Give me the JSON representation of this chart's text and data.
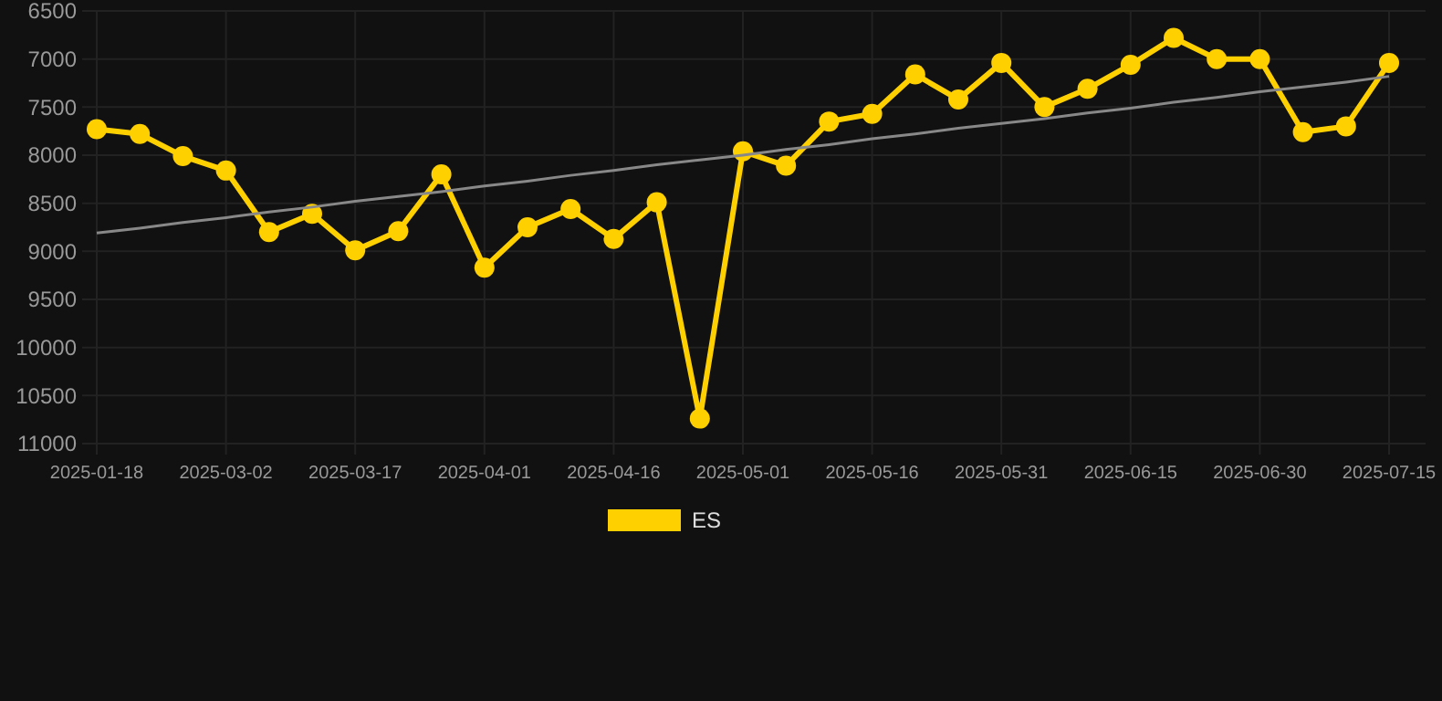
{
  "chart_data": {
    "type": "line",
    "categories": [
      "2025-01-18",
      null,
      null,
      "2025-03-02",
      null,
      null,
      "2025-03-17",
      null,
      null,
      "2025-04-01",
      null,
      null,
      "2025-04-16",
      null,
      null,
      "2025-05-01",
      null,
      null,
      "2025-05-16",
      null,
      null,
      "2025-05-31",
      null,
      null,
      "2025-06-15",
      null,
      null,
      "2025-06-30",
      null,
      null,
      "2025-07-15"
    ],
    "series": [
      {
        "name": "ES",
        "color": "#ffd000",
        "marker": "circle",
        "values": [
          7730,
          7780,
          8010,
          8160,
          8800,
          8610,
          8990,
          8790,
          8200,
          9170,
          8750,
          8560,
          8870,
          8490,
          10740,
          7960,
          8110,
          7650,
          7570,
          7160,
          7420,
          7040,
          7500,
          7310,
          7060,
          6780,
          7000,
          7000,
          7760,
          7700,
          7040
        ]
      },
      {
        "type": "line",
        "color": "#888888",
        "marker": "none",
        "values": [
          8810,
          8760,
          8700,
          8650,
          8590,
          8540,
          8480,
          8430,
          8380,
          8320,
          8270,
          8210,
          8160,
          8100,
          8050,
          8000,
          7940,
          7890,
          7830,
          7780,
          7720,
          7670,
          7620,
          7560,
          7510,
          7450,
          7400,
          7340,
          7290,
          7240,
          7180
        ]
      }
    ],
    "ylim": [
      11000,
      6500
    ],
    "yticks": [
      6500,
      7000,
      7500,
      8000,
      8500,
      9000,
      9500,
      10000,
      10500,
      11000
    ],
    "grid": true,
    "legend": "bottom"
  }
}
